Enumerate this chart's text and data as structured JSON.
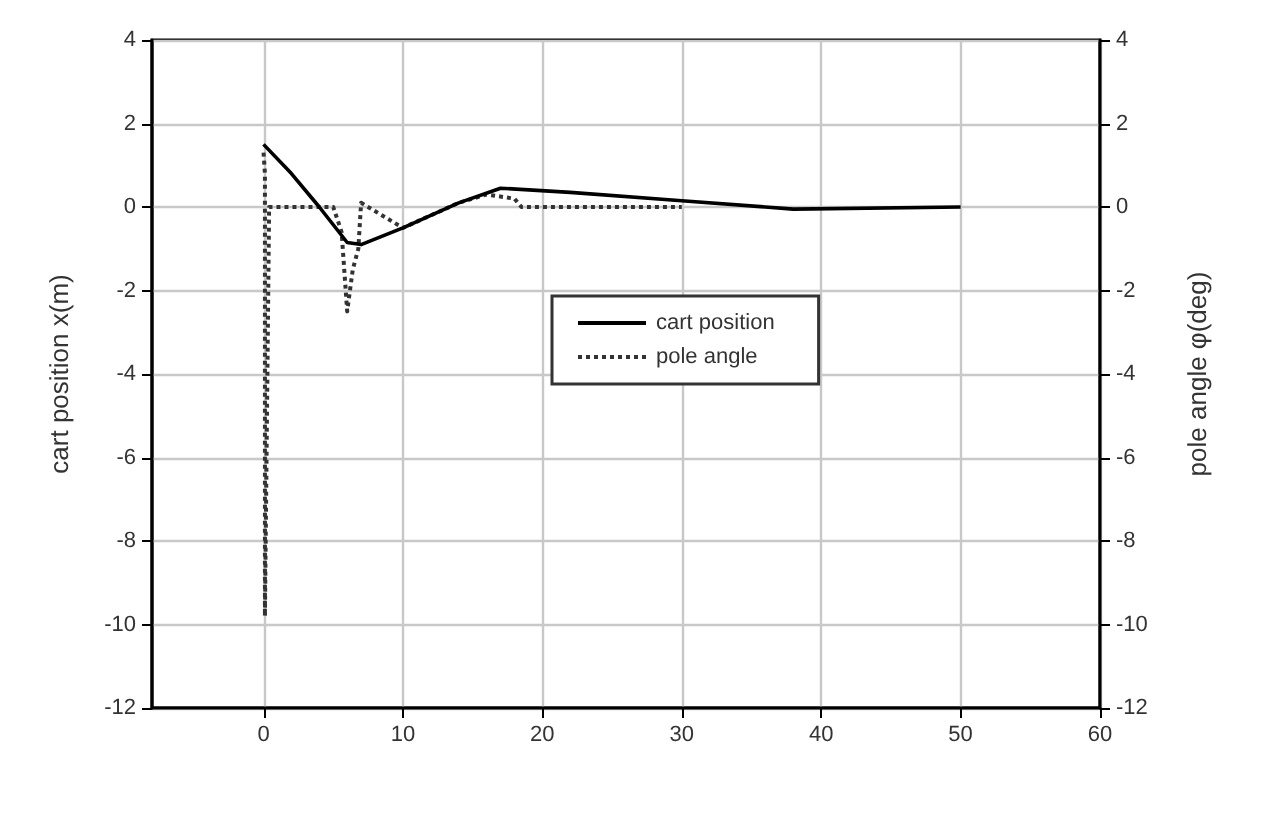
{
  "chart_data": {
    "type": "line",
    "ylabel": "cart position x(m)",
    "y2label": "pole angle φ(deg)",
    "xlim": [
      -8,
      60
    ],
    "xticks": [
      0,
      10,
      20,
      30,
      40,
      50,
      60
    ],
    "ylim": [
      -12,
      4
    ],
    "yticks": [
      -12,
      -10,
      -8,
      -6,
      -4,
      -2,
      0,
      2,
      4
    ],
    "y2lim": [
      -12,
      4
    ],
    "y2ticks": [
      -12,
      -10,
      -8,
      -6,
      -4,
      -2,
      0,
      2,
      4
    ],
    "grid": true,
    "legend": "center",
    "marker": "none",
    "series": [
      {
        "name": "cart position",
        "color": "#000000",
        "line_style": "solid",
        "x": [
          0,
          2,
          4,
          6,
          7,
          10,
          14,
          17,
          22,
          30,
          38,
          50
        ],
        "values": [
          1.5,
          0.8,
          0.0,
          -0.85,
          -0.9,
          -0.5,
          0.1,
          0.45,
          0.35,
          0.15,
          -0.05,
          0
        ]
      },
      {
        "name": "pole angle",
        "color": "#333333",
        "line_style": "dotted",
        "x": [
          0,
          0.1,
          0.1,
          0.4,
          5,
          5.6,
          6,
          6.4,
          6.8,
          7,
          10,
          14,
          16,
          18,
          18.5,
          30
        ],
        "values": [
          1.3,
          0.8,
          -9.8,
          0,
          0,
          -0.6,
          -2.5,
          -1.5,
          -1,
          0.1,
          -0.5,
          0.1,
          0.3,
          0.2,
          0,
          0
        ]
      }
    ]
  }
}
